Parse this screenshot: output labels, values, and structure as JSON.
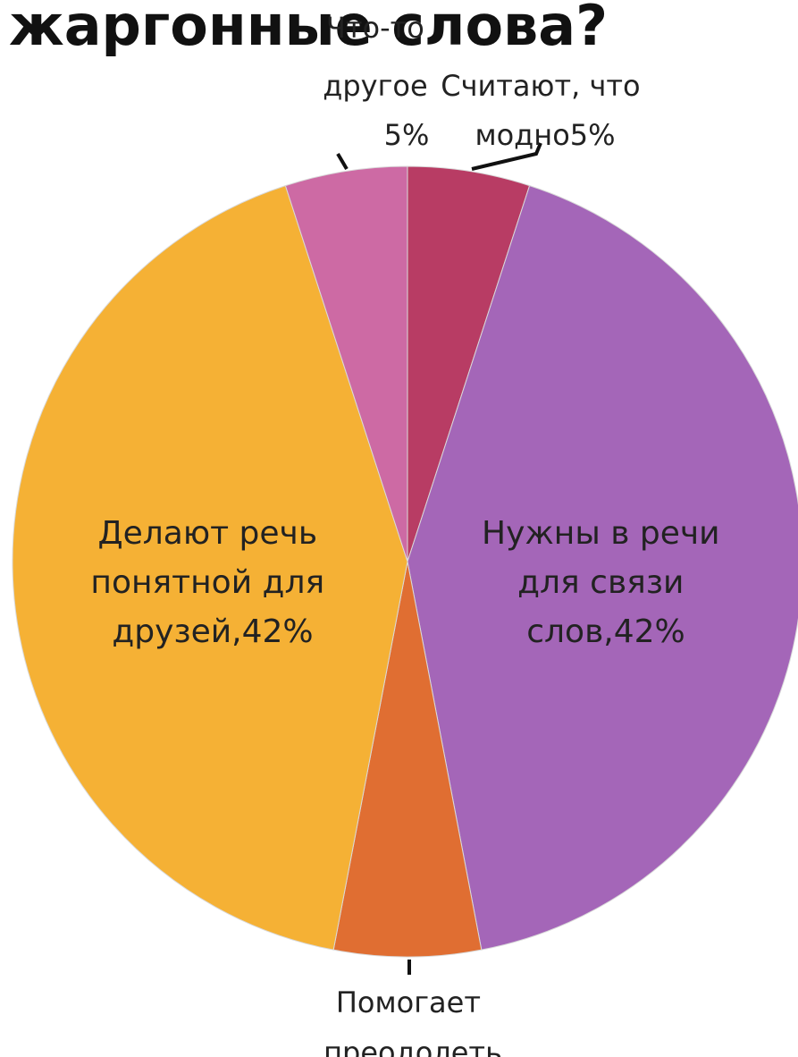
{
  "title": "жаргонные слова?",
  "chart_data": {
    "type": "pie",
    "slices": [
      {
        "label_lines": [
          "Считают, что",
          "модно5%"
        ],
        "value": 5,
        "color": "#b83c64"
      },
      {
        "label_lines": [
          "Нужны в речи",
          "для связи",
          "слов,42%"
        ],
        "value": 42,
        "color": "#a466b8"
      },
      {
        "label_lines": [
          "Помогает",
          "преодолеть"
        ],
        "value": 6,
        "color": "#e06e32"
      },
      {
        "label_lines": [
          "Делают речь",
          "понятной для",
          "друзей,42%"
        ],
        "value": 42,
        "color": "#f5b135"
      },
      {
        "label_lines": [
          "Что-то",
          "другое",
          "5%"
        ],
        "value": 5,
        "color": "#cd6aa4"
      }
    ]
  }
}
